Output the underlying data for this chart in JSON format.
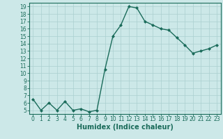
{
  "x": [
    0,
    1,
    2,
    3,
    4,
    5,
    6,
    7,
    8,
    9,
    10,
    11,
    12,
    13,
    14,
    15,
    16,
    17,
    18,
    19,
    20,
    21,
    22,
    23
  ],
  "y": [
    6.5,
    5.0,
    6.0,
    5.0,
    6.2,
    5.0,
    5.2,
    4.8,
    5.0,
    10.5,
    15.0,
    16.5,
    19.0,
    18.8,
    17.0,
    16.5,
    16.0,
    15.8,
    14.8,
    13.8,
    12.7,
    13.0,
    13.3,
    13.8
  ],
  "line_color": "#1a6b5a",
  "marker": "D",
  "marker_size": 2,
  "bg_color": "#cce8e8",
  "grid_color": "#aacfcf",
  "xlabel": "Humidex (Indice chaleur)",
  "xlim": [
    -0.5,
    23.5
  ],
  "ylim": [
    4.5,
    19.5
  ],
  "yticks": [
    5,
    6,
    7,
    8,
    9,
    10,
    11,
    12,
    13,
    14,
    15,
    16,
    17,
    18,
    19
  ],
  "xticks": [
    0,
    1,
    2,
    3,
    4,
    5,
    6,
    7,
    8,
    9,
    10,
    11,
    12,
    13,
    14,
    15,
    16,
    17,
    18,
    19,
    20,
    21,
    22,
    23
  ],
  "tick_fontsize": 5.5,
  "xlabel_fontsize": 7,
  "line_width": 1.0
}
